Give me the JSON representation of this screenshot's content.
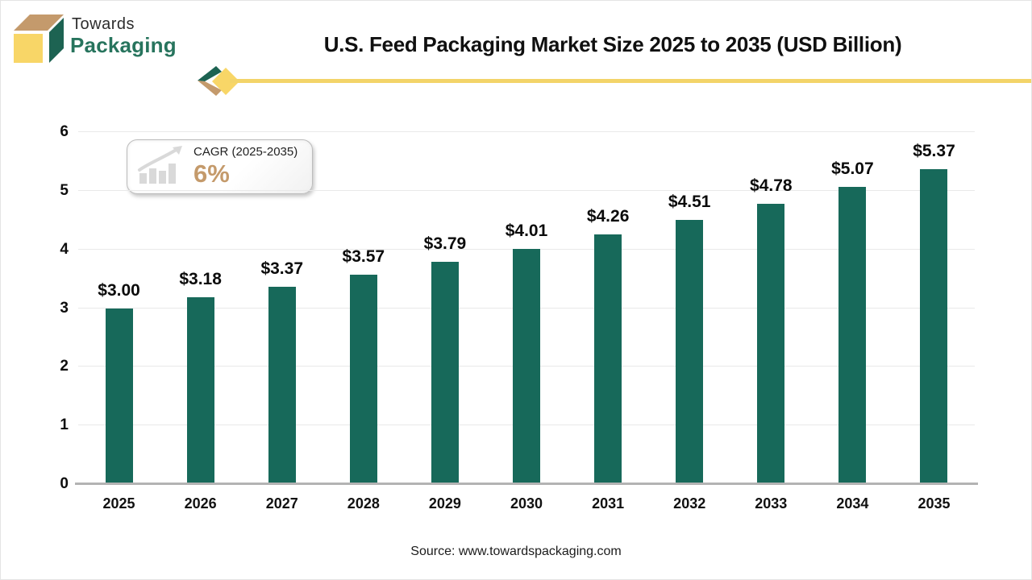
{
  "header": {
    "logo": {
      "icon": "packaging-box-icon",
      "line1": "Towards",
      "line2": "Packaging"
    },
    "title": "U.S. Feed Packaging Market Size 2025 to 2035 (USD Billion)"
  },
  "cagr_badge": {
    "icon": "growth-bars-arrow-icon",
    "label": "CAGR (2025-2035)",
    "value": "6%"
  },
  "chart_data": {
    "type": "bar",
    "title": "U.S. Feed Packaging Market Size 2025 to 2035 (USD Billion)",
    "categories": [
      "2025",
      "2026",
      "2027",
      "2028",
      "2029",
      "2030",
      "2031",
      "2032",
      "2033",
      "2034",
      "2035"
    ],
    "values": [
      3.0,
      3.18,
      3.37,
      3.57,
      3.79,
      4.01,
      4.26,
      4.51,
      4.78,
      5.07,
      5.37
    ],
    "value_labels": [
      "$3.00",
      "$3.18",
      "$3.37",
      "$3.57",
      "$3.79",
      "$4.01",
      "$4.26",
      "$4.51",
      "$4.78",
      "$5.07",
      "$5.37"
    ],
    "xlabel": "",
    "ylabel": "",
    "unit": "USD Billion",
    "ylim": [
      0,
      6
    ],
    "yticks": [
      0,
      1,
      2,
      3,
      4,
      5,
      6
    ],
    "grid": true,
    "legend": "none",
    "bar_color": "#17695a"
  },
  "footer": {
    "source": "Source: www.towardspackaging.com"
  },
  "colors": {
    "bar_green": "#17695a",
    "logo_green": "#27745d",
    "logo_dark_green": "#1d6352",
    "logo_yellow": "#f8d667",
    "logo_tan": "#c49a6c",
    "divider_yellow": "#f3d469",
    "cagr_value_tan": "#c49a6b",
    "gridline": "#e9e9e9",
    "axis_line": "#b3b3b3",
    "title_text": "#101010"
  }
}
